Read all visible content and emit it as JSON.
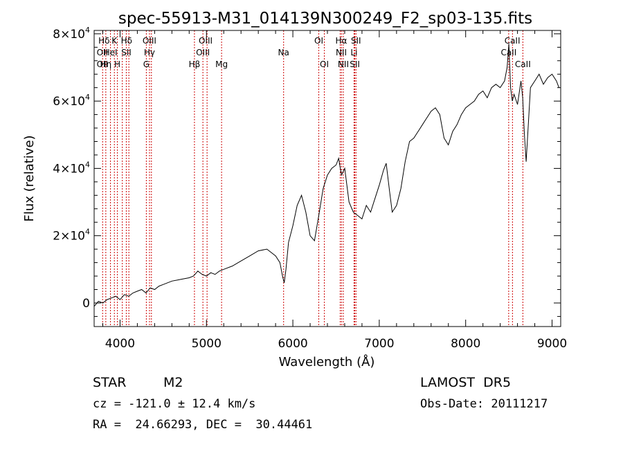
{
  "chart_data": {
    "type": "line",
    "title": "spec-55913-M31_014139N300249_F2_sp03-135.fits",
    "xlabel": "Wavelength (Å)",
    "ylabel": "Flux (relative)",
    "xlim": [
      3700,
      9100
    ],
    "ylim": [
      -7000,
      81000
    ],
    "x_ticks": [
      4000,
      5000,
      6000,
      7000,
      8000,
      9000
    ],
    "x_tick_labels": [
      "4000",
      "5000",
      "6000",
      "7000",
      "8000",
      "9000"
    ],
    "y_ticks": [
      0,
      20000,
      40000,
      60000,
      80000
    ],
    "y_tick_labels": [
      {
        "mantissa": "0",
        "exp": ""
      },
      {
        "mantissa": "2×10",
        "exp": "4"
      },
      {
        "mantissa": "4×10",
        "exp": "4"
      },
      {
        "mantissa": "6×10",
        "exp": "4"
      },
      {
        "mantissa": "8×10",
        "exp": "4"
      }
    ],
    "grid": false,
    "series": [
      {
        "color": "#000000",
        "x": [
          3700,
          3750,
          3800,
          3850,
          3900,
          3950,
          4000,
          4050,
          4100,
          4150,
          4200,
          4250,
          4300,
          4350,
          4400,
          4450,
          4500,
          4600,
          4700,
          4800,
          4850,
          4900,
          4950,
          5000,
          5050,
          5100,
          5150,
          5200,
          5300,
          5400,
          5500,
          5600,
          5700,
          5800,
          5850,
          5880,
          5900,
          5920,
          5950,
          6000,
          6050,
          6100,
          6150,
          6200,
          6250,
          6300,
          6350,
          6400,
          6450,
          6500,
          6530,
          6563,
          6600,
          6650,
          6700,
          6750,
          6800,
          6850,
          6900,
          6950,
          7000,
          7050,
          7080,
          7120,
          7150,
          7200,
          7250,
          7300,
          7350,
          7400,
          7450,
          7500,
          7550,
          7600,
          7650,
          7700,
          7750,
          7800,
          7850,
          7900,
          7950,
          8000,
          8050,
          8100,
          8150,
          8200,
          8250,
          8300,
          8350,
          8400,
          8450,
          8480,
          8500,
          8520,
          8540,
          8560,
          8600,
          8640,
          8660,
          8680,
          8700,
          8750,
          8800,
          8850,
          8900,
          8950,
          9000,
          9050,
          9080
        ],
        "y": [
          -1000,
          500,
          0,
          1000,
          1500,
          2000,
          1000,
          2500,
          2000,
          3000,
          3500,
          4000,
          3000,
          4500,
          4000,
          5000,
          5500,
          6500,
          7000,
          7500,
          8000,
          9500,
          8500,
          8000,
          9000,
          8500,
          9500,
          10000,
          11000,
          12500,
          14000,
          15500,
          16000,
          14000,
          12000,
          8000,
          6000,
          10000,
          18000,
          23000,
          29000,
          32000,
          27000,
          20000,
          18500,
          26000,
          34000,
          38000,
          40000,
          41000,
          43000,
          38000,
          40000,
          30000,
          27000,
          26000,
          25000,
          29000,
          27000,
          31000,
          35000,
          39500,
          41500,
          33000,
          27000,
          29000,
          34000,
          42000,
          48000,
          49000,
          51000,
          53000,
          55000,
          57000,
          58000,
          56000,
          49000,
          47000,
          51000,
          53000,
          56000,
          58000,
          59000,
          60000,
          62000,
          63000,
          61000,
          64000,
          65000,
          64000,
          66000,
          70000,
          77000,
          64000,
          60000,
          62000,
          59000,
          66000,
          61000,
          50000,
          42000,
          64000,
          66000,
          68000,
          65000,
          67000,
          68000,
          66000,
          64000
        ]
      }
    ],
    "lines": [
      {
        "x": 3798
      },
      {
        "x": 3835
      },
      {
        "x": 3889
      },
      {
        "x": 3934
      },
      {
        "x": 3969
      },
      {
        "x": 4026
      },
      {
        "x": 4072
      },
      {
        "x": 4102
      },
      {
        "x": 4304
      },
      {
        "x": 4341
      },
      {
        "x": 4363
      },
      {
        "x": 4861
      },
      {
        "x": 4959
      },
      {
        "x": 5007
      },
      {
        "x": 5175
      },
      {
        "x": 5893
      },
      {
        "x": 6300
      },
      {
        "x": 6364
      },
      {
        "x": 6548
      },
      {
        "x": 6563
      },
      {
        "x": 6584
      },
      {
        "x": 6708
      },
      {
        "x": 6717
      },
      {
        "x": 6731
      },
      {
        "x": 8498
      },
      {
        "x": 8542
      },
      {
        "x": 8662
      }
    ],
    "line_labels": [
      {
        "text": "Hδ",
        "x": 3815,
        "row": 0
      },
      {
        "text": "K",
        "x": 3934,
        "row": 0
      },
      {
        "text": "Hδ",
        "x": 4075,
        "row": 0
      },
      {
        "text": "OIII",
        "x": 4340,
        "row": 0
      },
      {
        "text": "OIII",
        "x": 4990,
        "row": 0
      },
      {
        "text": "OI",
        "x": 6300,
        "row": 0
      },
      {
        "text": "Hα",
        "x": 6560,
        "row": 0
      },
      {
        "text": "SII",
        "x": 6730,
        "row": 0
      },
      {
        "text": "CaII",
        "x": 8540,
        "row": 0
      },
      {
        "text": "OII",
        "x": 3795,
        "row": 1
      },
      {
        "text": "HeI",
        "x": 3889,
        "row": 1
      },
      {
        "text": "SII",
        "x": 4072,
        "row": 1
      },
      {
        "text": "Hγ",
        "x": 4340,
        "row": 1
      },
      {
        "text": "OIII",
        "x": 4959,
        "row": 1
      },
      {
        "text": "Na",
        "x": 5893,
        "row": 1
      },
      {
        "text": "NII",
        "x": 6560,
        "row": 1
      },
      {
        "text": "Li",
        "x": 6708,
        "row": 1
      },
      {
        "text": "CaII",
        "x": 8498,
        "row": 1
      },
      {
        "text": "OII",
        "x": 3795,
        "row": 2
      },
      {
        "text": "Hη",
        "x": 3835,
        "row": 2
      },
      {
        "text": "H",
        "x": 3969,
        "row": 2
      },
      {
        "text": "G",
        "x": 4304,
        "row": 2
      },
      {
        "text": "Hβ",
        "x": 4861,
        "row": 2
      },
      {
        "text": "Mg",
        "x": 5175,
        "row": 2
      },
      {
        "text": "OI",
        "x": 6364,
        "row": 2
      },
      {
        "text": "NII",
        "x": 6584,
        "row": 2
      },
      {
        "text": "SII",
        "x": 6717,
        "row": 2
      },
      {
        "text": "CaII",
        "x": 8662,
        "row": 2
      }
    ]
  },
  "info": {
    "object_class": "STAR",
    "subclass": "M2",
    "survey": "LAMOST  DR5",
    "velocity": "cz = -121.0 ± 12.4 km/s",
    "obs_date": "Obs-Date: 20111217",
    "coords": "RA =  24.66293, DEC =  30.44461"
  },
  "colors": {
    "spectrum": "#000000",
    "line_markers": "#cc0000",
    "background": "#ffffff"
  }
}
